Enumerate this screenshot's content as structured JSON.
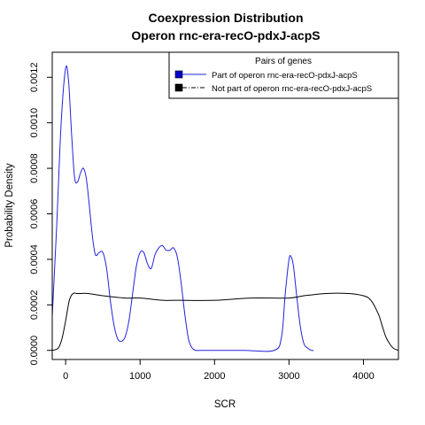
{
  "chart_data": {
    "type": "line",
    "title": [
      "Coexpression Distribution",
      "Operon rnc-era-recO-pdxJ-acpS"
    ],
    "xlabel": "SCR",
    "ylabel": "Probability Density",
    "xlim": [
      -180,
      4470
    ],
    "ylim": [
      -4e-05,
      0.00131
    ],
    "xticks": [
      0,
      1000,
      2000,
      3000,
      4000
    ],
    "xtick_labels": [
      "0",
      "1000",
      "2000",
      "3000",
      "4000"
    ],
    "yticks": [
      0.0,
      0.0002,
      0.0004,
      0.0006,
      0.0008,
      0.001,
      0.0012
    ],
    "ytick_labels": [
      "0.0000",
      "0.0002",
      "0.0004",
      "0.0006",
      "0.0008",
      "0.0010",
      "0.0012"
    ],
    "grid": false,
    "legend": {
      "title": "Pairs of genes",
      "placement": "top-right",
      "entries": [
        {
          "label": "Part of operon rnc-era-recO-pdxJ-acpS",
          "color": "#0000cc",
          "line": "solid"
        },
        {
          "label": "Not part of operon rnc-era-recO-pdxJ-acpS",
          "color": "#000000",
          "line": "dashdot"
        }
      ]
    },
    "series": [
      {
        "name": "Part of operon rnc-era-recO-pdxJ-acpS",
        "color": "#2222dd",
        "x": [
          -180,
          -120,
          -60,
          0,
          40,
          80,
          120,
          160,
          200,
          240,
          280,
          320,
          360,
          400,
          450,
          500,
          550,
          600,
          650,
          700,
          750,
          800,
          850,
          900,
          950,
          1000,
          1050,
          1100,
          1150,
          1200,
          1250,
          1300,
          1350,
          1400,
          1450,
          1500,
          1550,
          1600,
          1650,
          1700,
          1750,
          1800,
          2000,
          2400,
          2800,
          2900,
          2950,
          3000,
          3030,
          3060,
          3100,
          3150,
          3200,
          3250,
          3300,
          3330
        ],
        "y": [
          0.00015,
          0.00055,
          0.001,
          0.00124,
          0.00118,
          0.00095,
          0.00076,
          0.00074,
          0.00078,
          0.0008,
          0.00075,
          0.00063,
          0.0005,
          0.00042,
          0.00043,
          0.00043,
          0.00036,
          0.00022,
          0.00011,
          5e-05,
          4e-05,
          6e-05,
          0.00013,
          0.00025,
          0.00037,
          0.00043,
          0.00043,
          0.00038,
          0.00036,
          0.00042,
          0.00045,
          0.00046,
          0.00044,
          0.00044,
          0.00045,
          0.00041,
          0.0003,
          0.00016,
          5e-05,
          1e-05,
          0.0,
          0.0,
          0.0,
          0.0,
          0.0,
          6e-05,
          0.00025,
          0.0004,
          0.00041,
          0.00037,
          0.00025,
          0.00011,
          3e-05,
          1e-05,
          0.0,
          0.0
        ]
      },
      {
        "name": "Not part of operon rnc-era-recO-pdxJ-acpS",
        "color": "#000000",
        "x": [
          -180,
          -100,
          -50,
          0,
          50,
          100,
          150,
          200,
          300,
          500,
          800,
          1000,
          1300,
          1500,
          2000,
          2500,
          3000,
          3200,
          3500,
          3800,
          4000,
          4100,
          4200,
          4250,
          4300,
          4350,
          4400,
          4470
        ],
        "y": [
          0.0,
          1e-05,
          5e-05,
          0.00013,
          0.00022,
          0.00025,
          0.00025,
          0.00025,
          0.00025,
          0.00024,
          0.00023,
          0.00023,
          0.00022,
          0.00022,
          0.00022,
          0.00023,
          0.00023,
          0.00024,
          0.00025,
          0.00025,
          0.00024,
          0.00022,
          0.00016,
          0.00011,
          6e-05,
          3e-05,
          1e-05,
          0.0
        ]
      }
    ]
  }
}
